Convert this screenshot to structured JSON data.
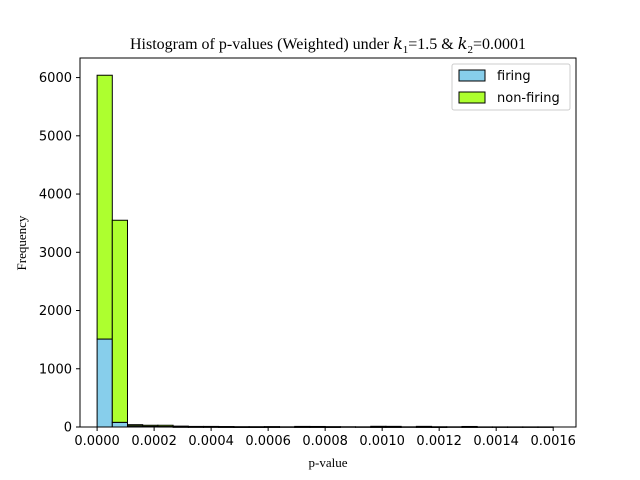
{
  "chart_data": {
    "type": "bar",
    "stacked": true,
    "title_parts": {
      "prefix": "Histogram of p-values (Weighted) under ",
      "k1_symbol": "k",
      "k1_sub": "1",
      "k1_value": "=1.5 & ",
      "k2_symbol": "k",
      "k2_sub": "2",
      "k2_value": "=0.0001"
    },
    "xlabel": "p-value",
    "ylabel": "Frequency",
    "xlim": [
      -6e-05,
      0.00168
    ],
    "ylim": [
      0,
      6336
    ],
    "xticks": [
      "0.0000",
      "0.0002",
      "0.0004",
      "0.0006",
      "0.0008",
      "0.0010",
      "0.0012",
      "0.0014",
      "0.0016"
    ],
    "yticks": [
      "0",
      "1000",
      "2000",
      "3000",
      "4000",
      "5000",
      "6000"
    ],
    "bin_width": 5.33e-05,
    "bin_starts": [
      0.0,
      5.33e-05,
      0.0001067,
      0.00016,
      0.0002133,
      0.0002667,
      0.00032,
      0.0003733,
      0.0004267,
      0.00048,
      0.0005333,
      0.0005867,
      0.00064,
      0.0006933,
      0.0007467,
      0.0008,
      0.0008533,
      0.0009067,
      0.00096,
      0.0010133,
      0.0010667,
      0.00112,
      0.0011733,
      0.0012267,
      0.00128,
      0.0013333,
      0.0013867,
      0.00144,
      0.0014933,
      0.0015467
    ],
    "series": [
      {
        "name": "firing",
        "color": "#87ceeb",
        "values": [
          1510,
          80,
          20,
          10,
          8,
          3,
          2,
          2,
          1,
          1,
          1,
          1,
          0,
          1,
          1,
          1,
          0,
          0,
          1,
          1,
          0,
          1,
          1,
          0,
          1,
          0,
          0,
          0,
          0,
          0
        ]
      },
      {
        "name": "non-firing",
        "color": "#adff2f",
        "values": [
          4530,
          3470,
          20,
          20,
          22,
          12,
          8,
          8,
          7,
          4,
          4,
          6,
          3,
          9,
          8,
          5,
          4,
          3,
          11,
          10,
          3,
          10,
          3,
          3,
          8,
          2,
          2,
          2,
          2,
          2
        ]
      }
    ],
    "legend_position": "upper right",
    "grid": false
  }
}
